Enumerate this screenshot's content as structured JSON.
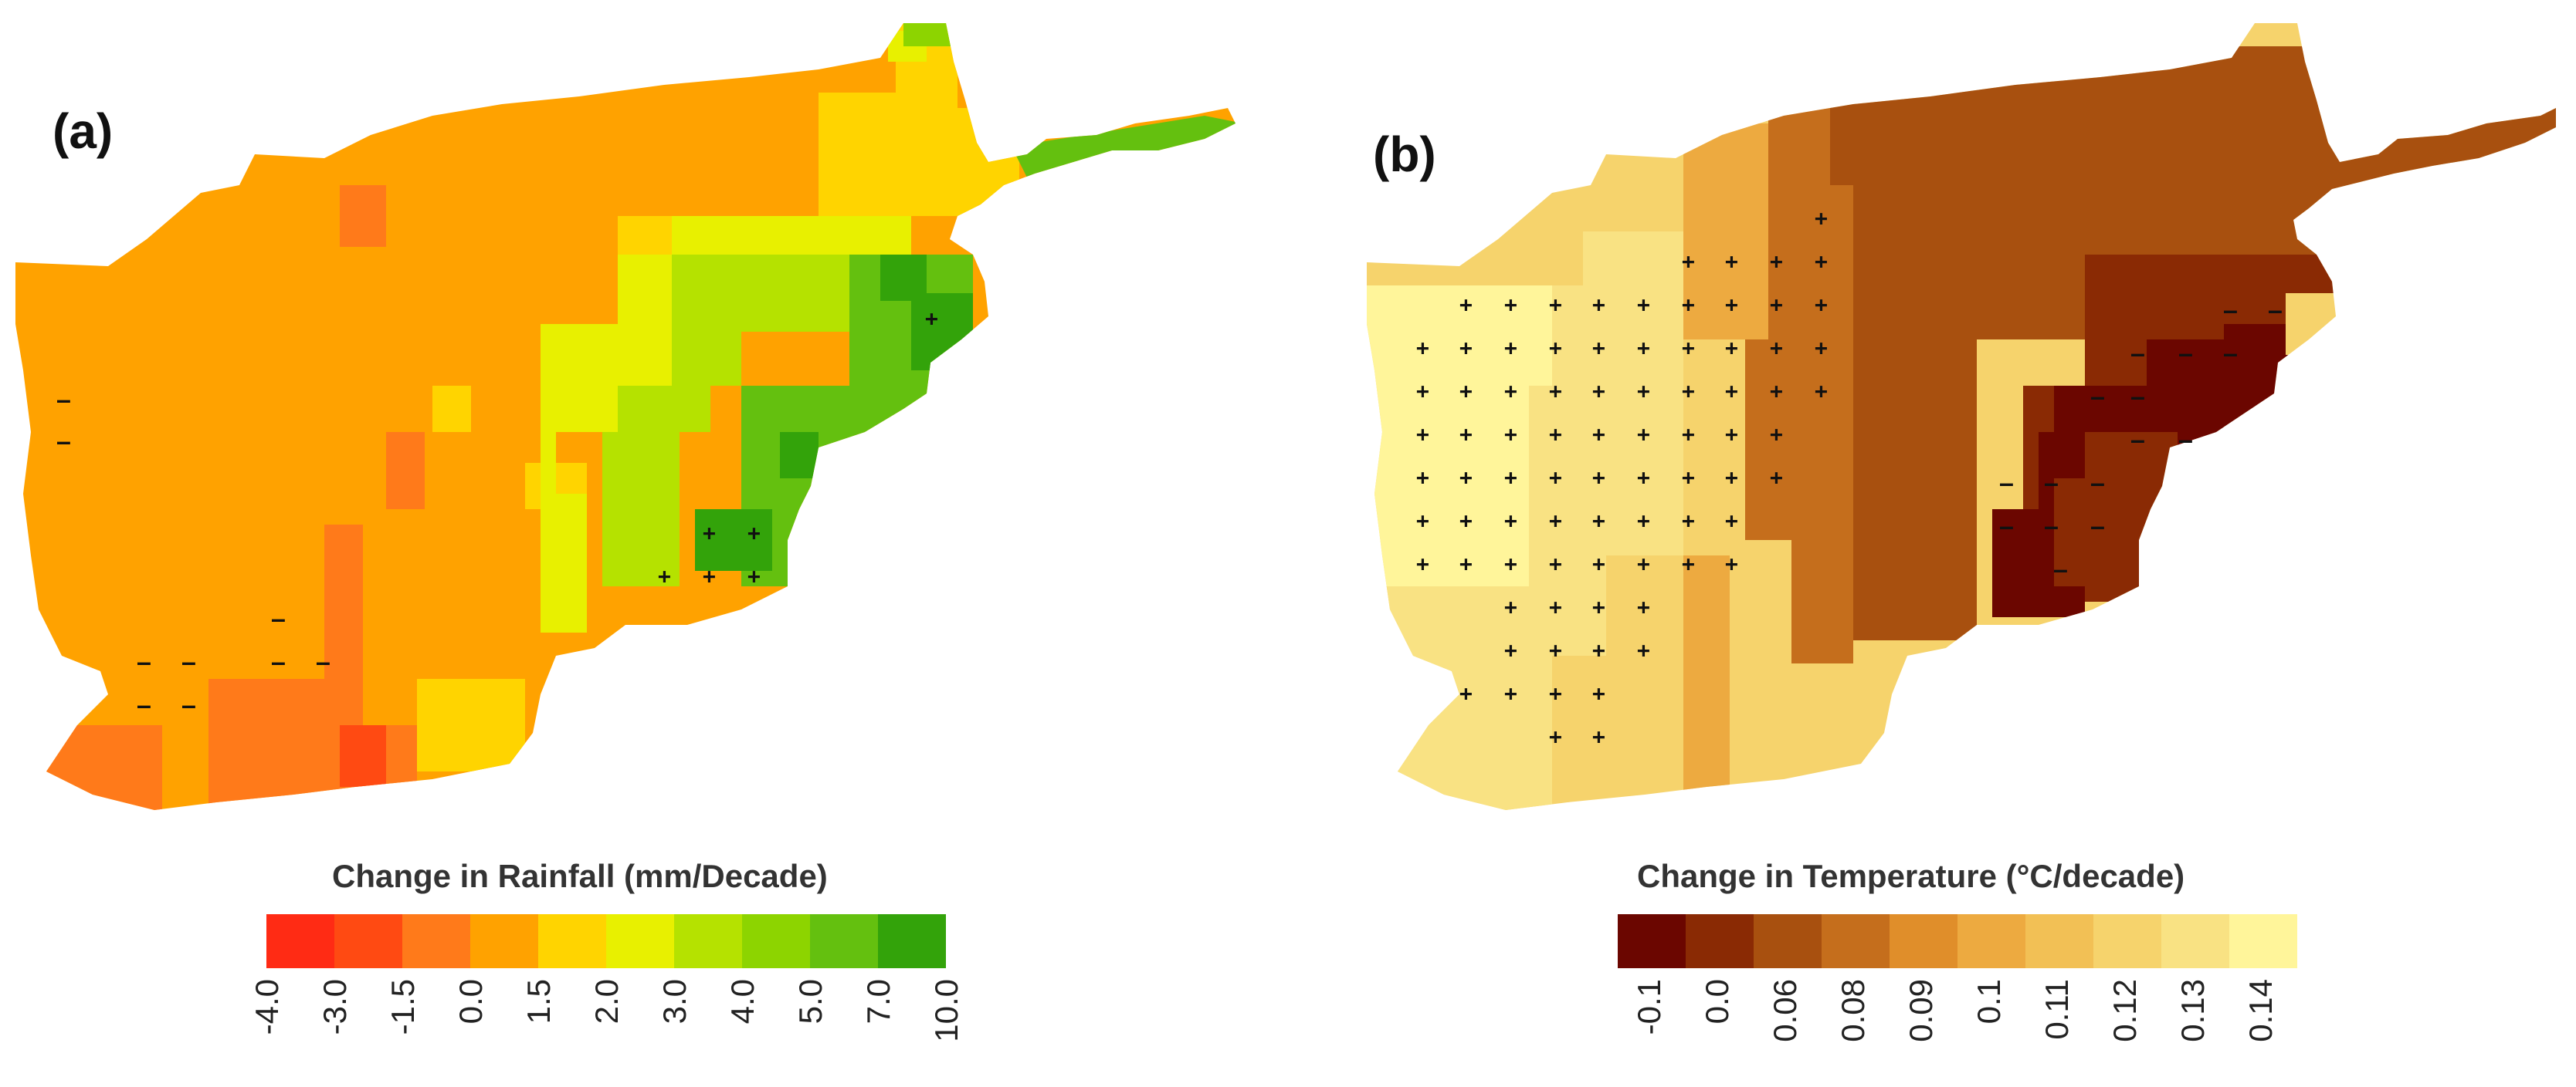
{
  "panels": [
    {
      "label": "(a)",
      "legend": {
        "title": "Change in Rainfall (mm/Decade)",
        "ticks": [
          "-4.0",
          "-3.0",
          "-1.5",
          "0.0",
          "1.5",
          "2.0",
          "3.0",
          "4.0",
          "5.0",
          "7.0",
          "10.0"
        ],
        "colors": [
          "#ff2b14",
          "#ff4a12",
          "#ff7a1a",
          "#ffa200",
          "#ffd400",
          "#e8f000",
          "#b5e200",
          "#8dd400",
          "#64c00f",
          "#33a30a"
        ]
      },
      "map": {
        "base_color": "#ffa200",
        "regions": [
          {
            "name": "south-west-strip",
            "color": "#ff7a1a"
          },
          {
            "name": "south-center-block",
            "color": "#ff7a1a"
          },
          {
            "name": "south-deep-orange",
            "color": "#ff4a12"
          },
          {
            "name": "north-east-corridor",
            "color": "#ffd400"
          },
          {
            "name": "central-yellow-band",
            "color": "#e8f000"
          },
          {
            "name": "central-lime-zone",
            "color": "#b5e200"
          },
          {
            "name": "east-green-zone",
            "color": "#64c00f"
          },
          {
            "name": "east-dark-green",
            "color": "#33a30a"
          },
          {
            "name": "wakhan-strip",
            "color": "#8dd400"
          },
          {
            "name": "north-tip",
            "color": "#ff2b14"
          }
        ],
        "markers": {
          "plus": "+",
          "minus": "–"
        }
      }
    },
    {
      "label": "(b)",
      "legend": {
        "title": "Change in Temperature (°C/decade)",
        "ticks": [
          "-0.1",
          "0.0",
          "0.06",
          "0.08",
          "0.09",
          "0.1",
          "0.11",
          "0.12",
          "0.13",
          "0.14"
        ],
        "colors": [
          "#6b0600",
          "#8a2a04",
          "#a8500f",
          "#c56e1c",
          "#e08e2a",
          "#edaa40",
          "#f2c055",
          "#f6d36c",
          "#f9e283",
          "#fff59a"
        ]
      },
      "map": {
        "base_color": "#f6d36c",
        "regions": [
          {
            "name": "west-pale-zone",
            "color": "#fff59a"
          },
          {
            "name": "west-light-zone",
            "color": "#f9e283"
          },
          {
            "name": "central-gold-band",
            "color": "#edaa40"
          },
          {
            "name": "central-orange-band",
            "color": "#c56e1c"
          },
          {
            "name": "north-east-brown",
            "color": "#a8500f"
          },
          {
            "name": "east-dark-brown",
            "color": "#8a2a04"
          },
          {
            "name": "south-east-maroon",
            "color": "#6b0600"
          }
        ],
        "markers": {
          "plus": "+",
          "minus": "–"
        }
      }
    }
  ]
}
